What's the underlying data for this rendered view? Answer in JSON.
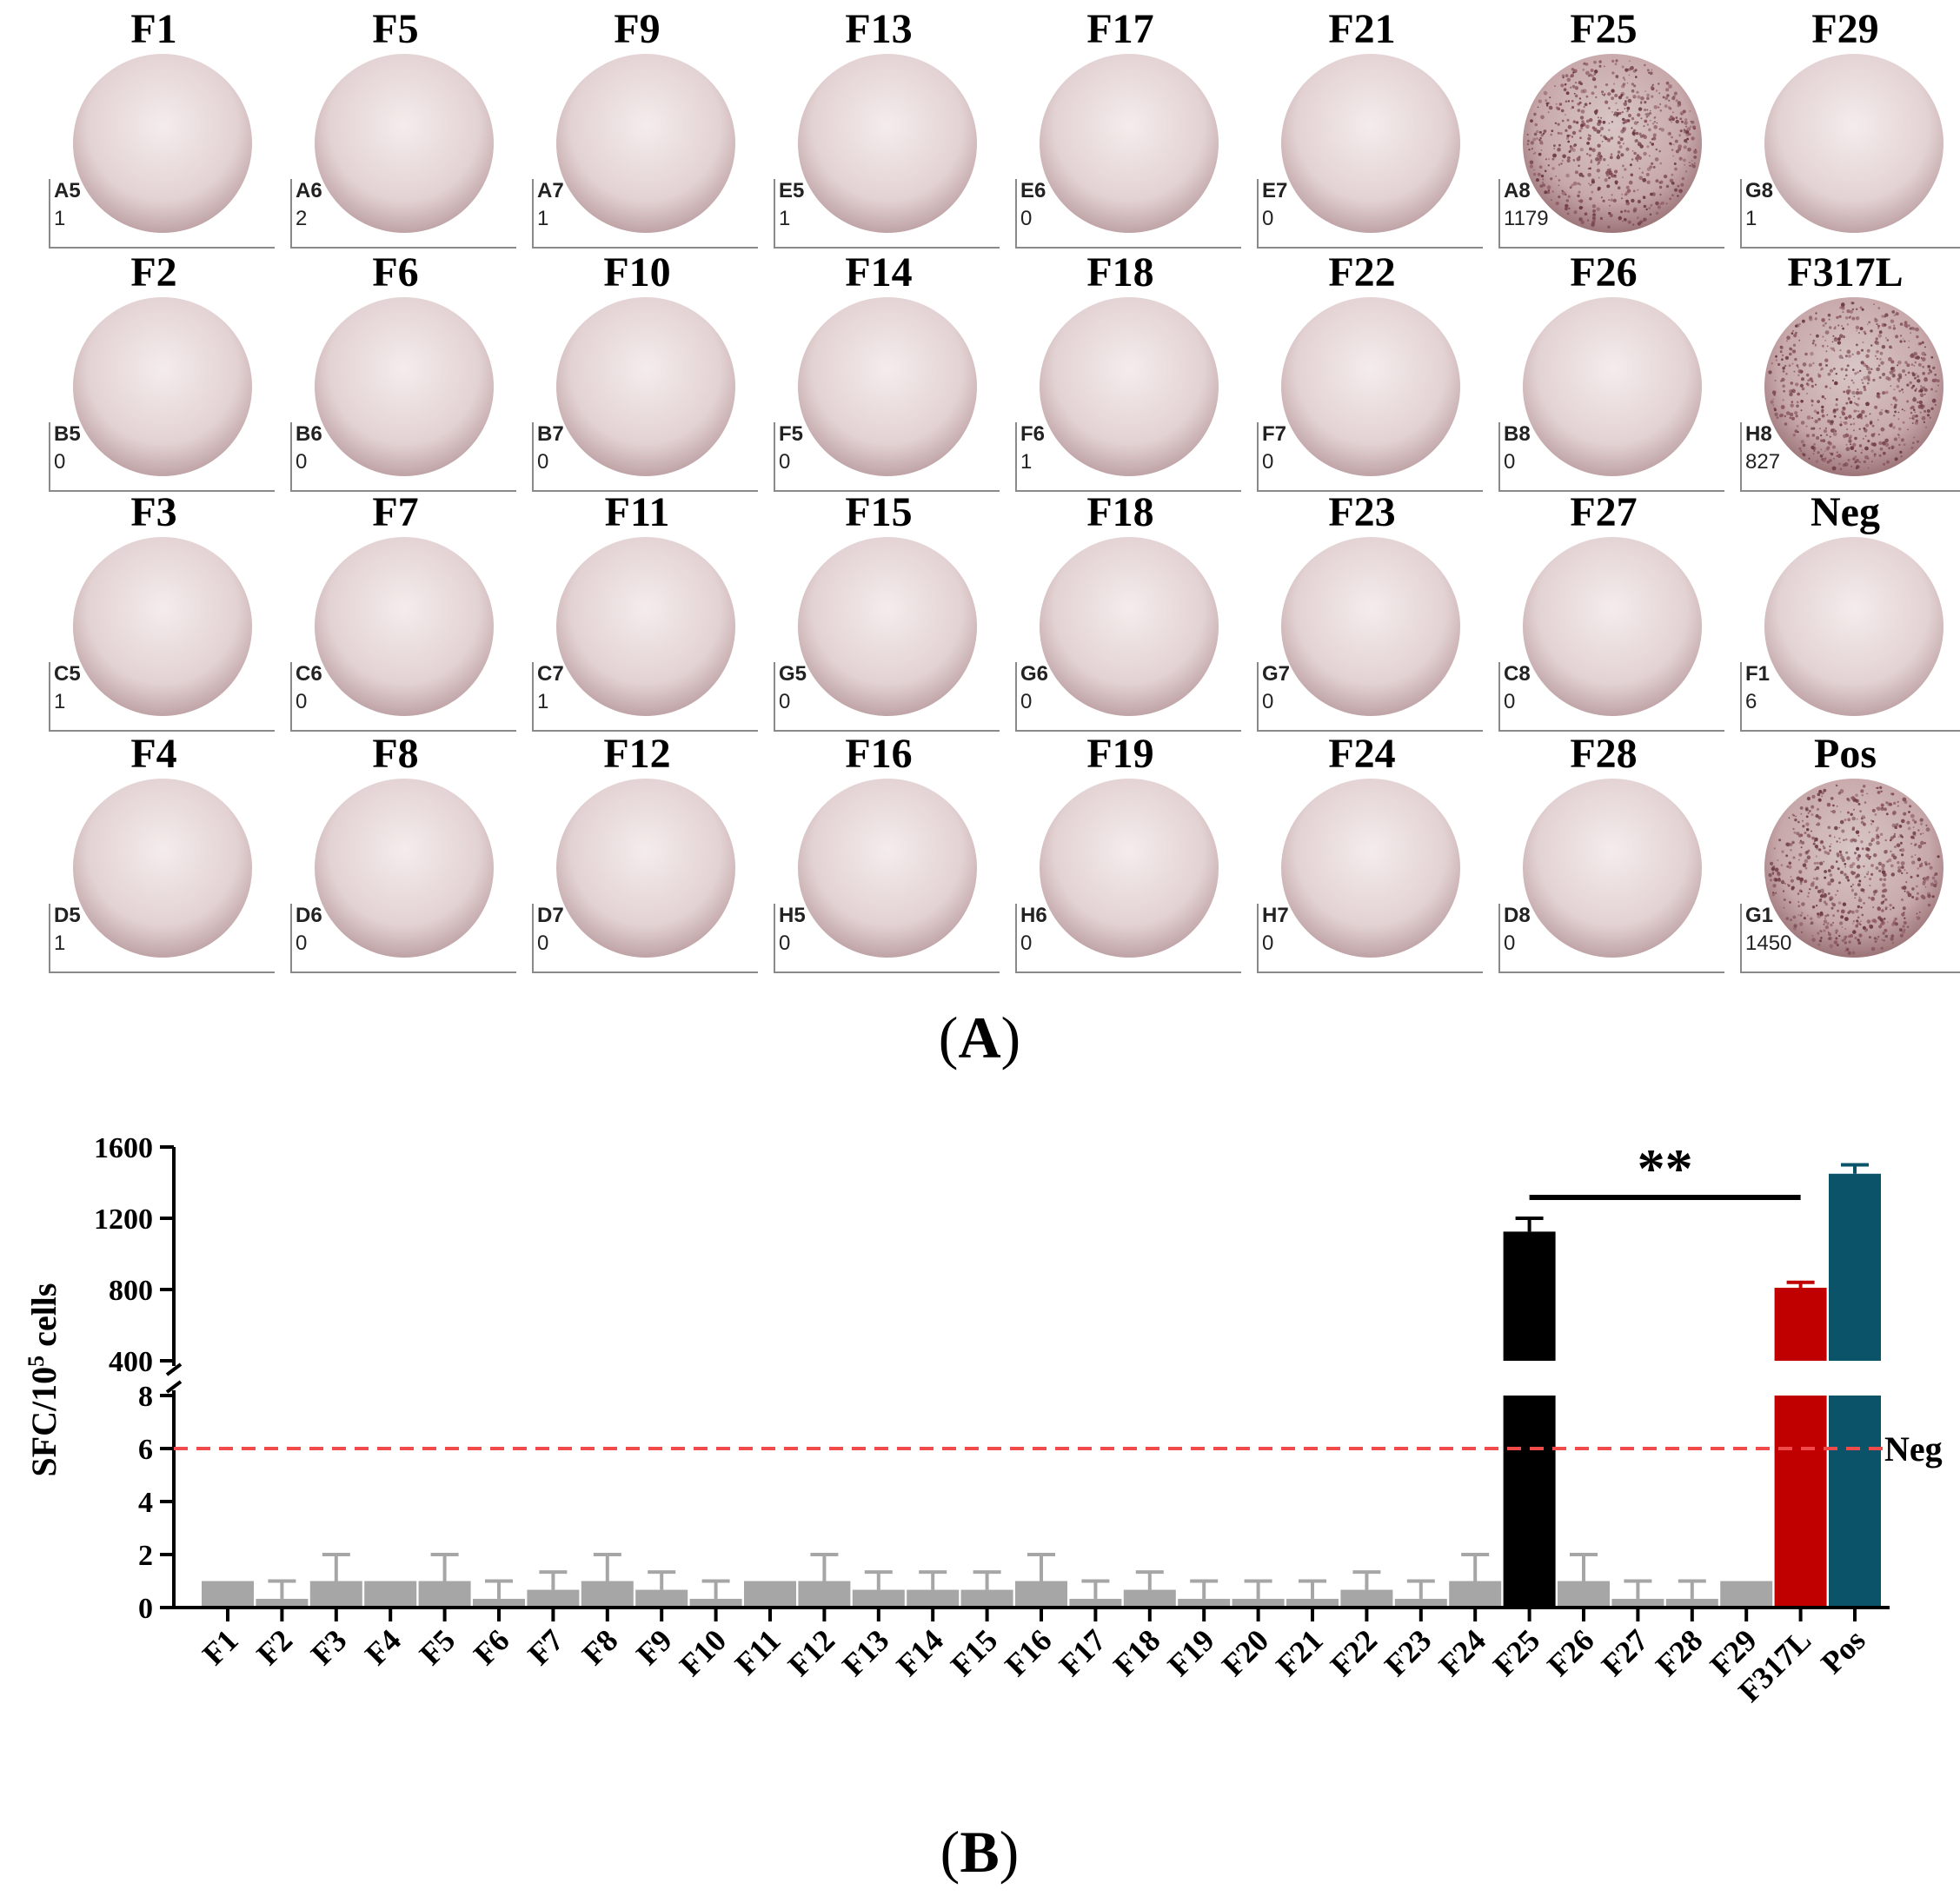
{
  "panel_a": {
    "label_open": "(",
    "label_letter": "A",
    "label_close": ")",
    "wells": [
      {
        "name": "F1",
        "well": "A5",
        "count": "1",
        "spots": 0
      },
      {
        "name": "F5",
        "well": "A6",
        "count": "2",
        "spots": 0
      },
      {
        "name": "F9",
        "well": "A7",
        "count": "1",
        "spots": 0
      },
      {
        "name": "F13",
        "well": "E5",
        "count": "1",
        "spots": 0
      },
      {
        "name": "F17",
        "well": "E6",
        "count": "0",
        "spots": 0
      },
      {
        "name": "F21",
        "well": "E7",
        "count": "0",
        "spots": 0
      },
      {
        "name": "F25",
        "well": "A8",
        "count": "1179",
        "spots": 1
      },
      {
        "name": "F29",
        "well": "G8",
        "count": "1",
        "spots": 0
      },
      {
        "name": "F2",
        "well": "B5",
        "count": "0",
        "spots": 0
      },
      {
        "name": "F6",
        "well": "B6",
        "count": "0",
        "spots": 0
      },
      {
        "name": "F10",
        "well": "B7",
        "count": "0",
        "spots": 0
      },
      {
        "name": "F14",
        "well": "F5",
        "count": "0",
        "spots": 0
      },
      {
        "name": "F18",
        "well": "F6",
        "count": "1",
        "spots": 0
      },
      {
        "name": "F22",
        "well": "F7",
        "count": "0",
        "spots": 0
      },
      {
        "name": "F26",
        "well": "B8",
        "count": "0",
        "spots": 0
      },
      {
        "name": "F317L",
        "well": "H8",
        "count": "827",
        "spots": 1
      },
      {
        "name": "F3",
        "well": "C5",
        "count": "1",
        "spots": 0
      },
      {
        "name": "F7",
        "well": "C6",
        "count": "0",
        "spots": 0
      },
      {
        "name": "F11",
        "well": "C7",
        "count": "1",
        "spots": 0
      },
      {
        "name": "F15",
        "well": "G5",
        "count": "0",
        "spots": 0
      },
      {
        "name": "F18",
        "well": "G6",
        "count": "0",
        "spots": 0
      },
      {
        "name": "F23",
        "well": "G7",
        "count": "0",
        "spots": 0
      },
      {
        "name": "F27",
        "well": "C8",
        "count": "0",
        "spots": 0
      },
      {
        "name": "Neg",
        "well": "F1",
        "count": "6",
        "spots": 0
      },
      {
        "name": "F4",
        "well": "D5",
        "count": "1",
        "spots": 0
      },
      {
        "name": "F8",
        "well": "D6",
        "count": "0",
        "spots": 0
      },
      {
        "name": "F12",
        "well": "D7",
        "count": "0",
        "spots": 0
      },
      {
        "name": "F16",
        "well": "H5",
        "count": "0",
        "spots": 0
      },
      {
        "name": "F19",
        "well": "H6",
        "count": "0",
        "spots": 0
      },
      {
        "name": "F24",
        "well": "H7",
        "count": "0",
        "spots": 0
      },
      {
        "name": "F28",
        "well": "D8",
        "count": "0",
        "spots": 0
      },
      {
        "name": "Pos",
        "well": "G1",
        "count": "1450",
        "spots": 1
      }
    ]
  },
  "panel_b": {
    "label_open": "(",
    "label_letter": "B",
    "label_close": ")"
  },
  "chart_data": {
    "type": "bar",
    "title": "",
    "xlabel": "",
    "ylabel_prefix": "SFC/10",
    "ylabel_sup": "5",
    "ylabel_suffix": " cells",
    "y_axis_break": {
      "lower": [
        0,
        8
      ],
      "upper": [
        400,
        1600
      ]
    },
    "yticks_lower": [
      "0",
      "2",
      "4",
      "6",
      "8"
    ],
    "yticks_upper": [
      "400",
      "800",
      "1200",
      "1600"
    ],
    "categories": [
      "F1",
      "F2",
      "F3",
      "F4",
      "F5",
      "F6",
      "F7",
      "F8",
      "F9",
      "F10",
      "F11",
      "F12",
      "F13",
      "F14",
      "F15",
      "F16",
      "F17",
      "F18",
      "F19",
      "F20",
      "F21",
      "F22",
      "F23",
      "F24",
      "F25",
      "F26",
      "F27",
      "F28",
      "F29",
      "F317L",
      "Pos"
    ],
    "values": [
      1,
      0.33,
      1,
      1,
      1,
      0.33,
      0.67,
      1,
      0.67,
      0.33,
      1,
      1,
      0.67,
      0.67,
      0.67,
      1,
      0.33,
      0.67,
      0.33,
      0.33,
      0.33,
      0.67,
      0.33,
      1,
      1125,
      1,
      0.33,
      0.33,
      1,
      810,
      1450
    ],
    "errors": [
      0,
      0.67,
      1,
      0,
      1,
      0.67,
      0.67,
      1,
      0.67,
      0.67,
      0,
      1,
      0.67,
      0.67,
      0.67,
      1,
      0.67,
      0.67,
      0.67,
      0.67,
      0.67,
      0.67,
      0.67,
      1,
      75,
      1,
      0.67,
      0.67,
      0,
      30,
      50
    ],
    "colors": {
      "default": "#a6a6a6",
      "F25": "#000000",
      "F317L": "#c00000",
      "Pos": "#0b5368",
      "neg_line": "#f04a4a"
    },
    "reference_line": {
      "value": 6,
      "label": "Neg"
    },
    "significance": {
      "from": "F25",
      "to": "F317L",
      "label": "**"
    }
  }
}
